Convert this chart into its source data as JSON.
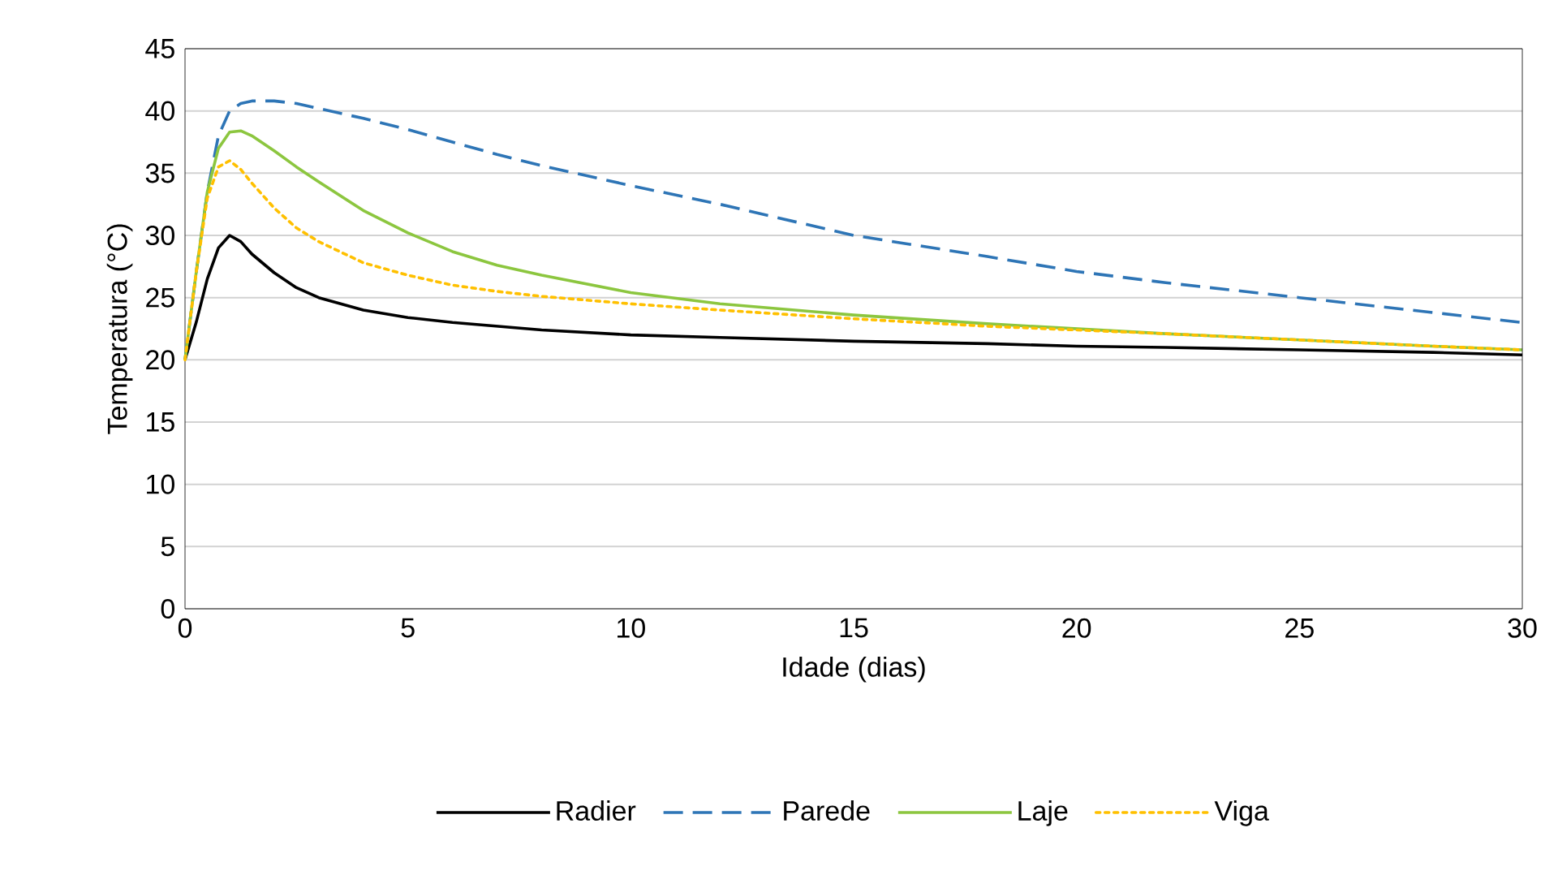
{
  "chart_data": {
    "type": "line",
    "xlabel": "Idade (dias)",
    "ylabel": "Temperatura (°C)",
    "x": [
      0,
      0.25,
      0.5,
      0.75,
      1,
      1.25,
      1.5,
      2,
      2.5,
      3,
      4,
      5,
      6,
      7,
      8,
      10,
      12,
      15,
      18,
      20,
      22,
      25,
      28,
      30
    ],
    "series": [
      {
        "name": "Radier",
        "color": "#000000",
        "line_style": "solid",
        "values": [
          20,
          23,
          26.5,
          29,
          30,
          29.5,
          28.5,
          27,
          25.8,
          25,
          24,
          23.4,
          23,
          22.7,
          22.4,
          22,
          21.8,
          21.5,
          21.3,
          21.1,
          21,
          20.8,
          20.6,
          20.4
        ]
      },
      {
        "name": "Parede",
        "color": "#2e75b6",
        "line_style": "dashed",
        "values": [
          20,
          27,
          33.5,
          38,
          40,
          40.6,
          40.8,
          40.8,
          40.6,
          40.2,
          39.4,
          38.5,
          37.5,
          36.5,
          35.6,
          34,
          32.5,
          30,
          28.3,
          27.1,
          26.2,
          25,
          23.8,
          23.0
        ]
      },
      {
        "name": "Laje",
        "color": "#8cc63f",
        "line_style": "solid",
        "values": [
          20,
          27,
          33.5,
          37,
          38.3,
          38.4,
          38,
          36.8,
          35.5,
          34.3,
          32,
          30.2,
          28.7,
          27.6,
          26.8,
          25.4,
          24.5,
          23.6,
          22.9,
          22.5,
          22.1,
          21.6,
          21.1,
          20.8
        ]
      },
      {
        "name": "Viga",
        "color": "#ffc000",
        "line_style": "dotted",
        "values": [
          20,
          27,
          33,
          35.5,
          36,
          35.3,
          34.2,
          32.2,
          30.6,
          29.5,
          27.8,
          26.8,
          26,
          25.5,
          25.1,
          24.5,
          24,
          23.3,
          22.7,
          22.4,
          22.1,
          21.6,
          21.1,
          20.8
        ]
      }
    ],
    "xlim": [
      0,
      30
    ],
    "xticks": [
      0,
      5,
      10,
      15,
      20,
      25,
      30
    ],
    "ylim": [
      0,
      45
    ],
    "yticks": [
      0,
      5,
      10,
      15,
      20,
      25,
      30,
      35,
      40,
      45
    ],
    "grid": "y",
    "legend": "bottom",
    "marker": "none"
  }
}
